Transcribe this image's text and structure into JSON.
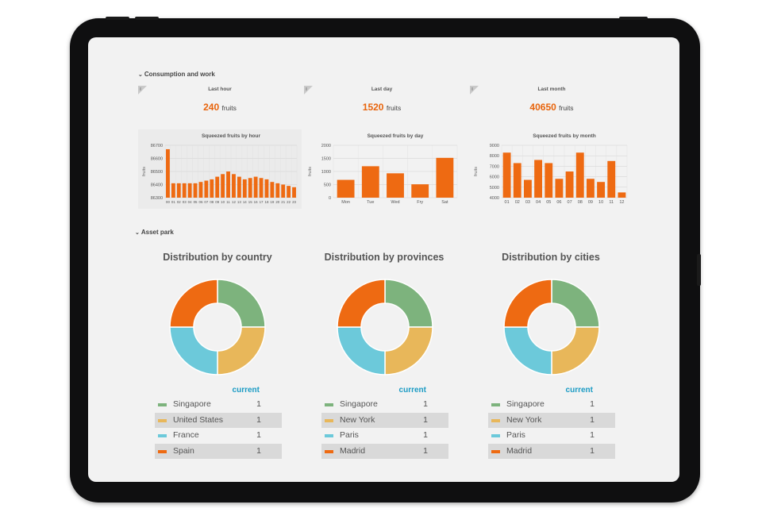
{
  "sections": {
    "consumption_title": "Consumption and work",
    "asset_title": "Asset park"
  },
  "colors": {
    "accent": "#e8640c",
    "green": "#7db37d",
    "yellow": "#e8b75a",
    "cyan": "#6cc9da",
    "orange": "#ee6a12",
    "legend_header": "#1a9bc4"
  },
  "stats": [
    {
      "label": "Last hour",
      "value": "240",
      "unit": "fruits"
    },
    {
      "label": "Last day",
      "value": "1520",
      "unit": "fruits"
    },
    {
      "label": "Last month",
      "value": "40650",
      "unit": "fruits"
    }
  ],
  "chart_data": [
    {
      "type": "bar",
      "title": "Squeezed fruits by hour",
      "ylabel": "fruits",
      "xlabel": "",
      "categories": [
        "00",
        "01",
        "02",
        "03",
        "04",
        "05",
        "06",
        "07",
        "08",
        "09",
        "10",
        "11",
        "12",
        "13",
        "14",
        "15",
        "16",
        "17",
        "18",
        "19",
        "20",
        "21",
        "22",
        "23"
      ],
      "values": [
        86670,
        86410,
        86410,
        86410,
        86410,
        86410,
        86420,
        86430,
        86440,
        86460,
        86480,
        86500,
        86480,
        86460,
        86440,
        86450,
        86460,
        86450,
        86440,
        86420,
        86410,
        86400,
        86390,
        86380
      ],
      "ylim": [
        86300,
        86700
      ],
      "yticks": [
        86300,
        86400,
        86500,
        86600,
        86700
      ],
      "grid": true
    },
    {
      "type": "bar",
      "title": "Squeezed fruits by day",
      "ylabel": "fruits",
      "xlabel": "",
      "categories": [
        "Mon",
        "Tue",
        "Wed",
        "Fry",
        "Sat"
      ],
      "values": [
        680,
        1200,
        930,
        510,
        1520
      ],
      "ylim": [
        0,
        2000
      ],
      "yticks": [
        0,
        500,
        1000,
        1500,
        2000
      ],
      "grid": true
    },
    {
      "type": "bar",
      "title": "Squeezed fruits by month",
      "ylabel": "fruits",
      "xlabel": "",
      "categories": [
        "01",
        "02",
        "03",
        "04",
        "05",
        "06",
        "07",
        "08",
        "09",
        "10",
        "11",
        "12"
      ],
      "values": [
        8300,
        7300,
        5700,
        7600,
        7300,
        5800,
        6500,
        8300,
        5800,
        5500,
        7500,
        4500
      ],
      "ylim": [
        4000,
        9000
      ],
      "yticks": [
        4000,
        5000,
        6000,
        7000,
        8000,
        9000
      ],
      "grid": true
    },
    {
      "type": "pie",
      "title": "Distribution by country",
      "series_header": "current",
      "labels": [
        "Singapore",
        "United States",
        "France",
        "Spain"
      ],
      "values": [
        1,
        1,
        1,
        1
      ]
    },
    {
      "type": "pie",
      "title": "Distribution by provinces",
      "series_header": "current",
      "labels": [
        "Singapore",
        "New York",
        "Paris",
        "Madrid"
      ],
      "values": [
        1,
        1,
        1,
        1
      ]
    },
    {
      "type": "pie",
      "title": "Distribution by cities",
      "series_header": "current",
      "labels": [
        "Singapore",
        "New York",
        "Paris",
        "Madrid"
      ],
      "values": [
        1,
        1,
        1,
        1
      ]
    }
  ]
}
